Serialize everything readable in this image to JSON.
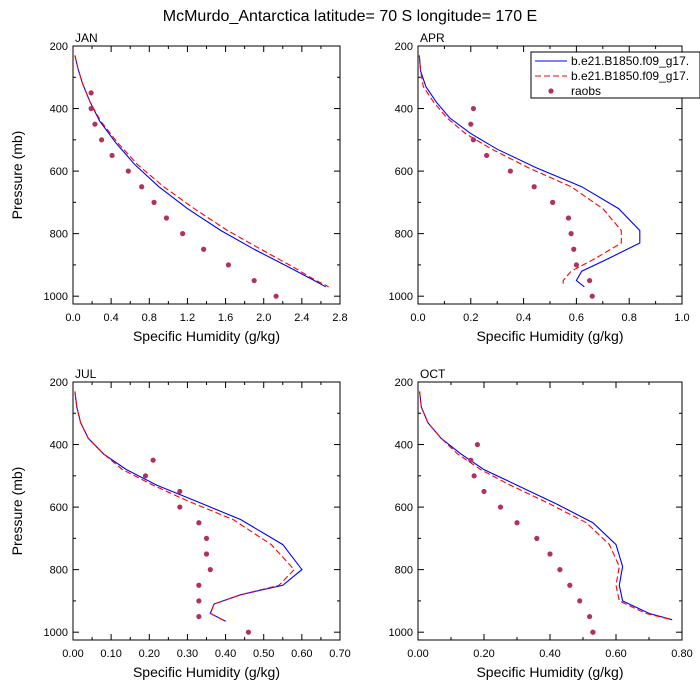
{
  "title": "McMurdo_Antarctica  latitude= 70 S longitude= 170 E",
  "colors": {
    "series1": "#0000ff",
    "series2": "#ff0000",
    "obs": "#b03060"
  },
  "legend": {
    "position": "top-right",
    "entries": [
      {
        "label": "b.e21.B1850.f09_g17.",
        "style": "solid-line"
      },
      {
        "label": "b.e21.B1850.f09_g17.",
        "style": "dashed-line"
      },
      {
        "label": "raobs",
        "style": "dot"
      }
    ]
  },
  "chart_data": [
    {
      "panel": "JAN",
      "type": "line",
      "xlabel": "Specific Humidity (g/kg)",
      "ylabel": "Pressure (mb)",
      "xlim": [
        0,
        2.8
      ],
      "xticks": [
        "0.0",
        "0.4",
        "0.8",
        "1.2",
        "1.6",
        "2.0",
        "2.4",
        "2.8"
      ],
      "ylim": [
        200,
        1025
      ],
      "yticks": [
        "200",
        "400",
        "600",
        "800",
        "1000"
      ],
      "series": [
        {
          "style": "solid",
          "color": "#0000ff",
          "x": [
            0.02,
            0.05,
            0.1,
            0.18,
            0.28,
            0.45,
            0.65,
            0.9,
            1.2,
            1.55,
            1.9,
            2.25,
            2.5,
            2.65
          ],
          "y": [
            230,
            270,
            320,
            380,
            440,
            510,
            580,
            650,
            720,
            790,
            850,
            905,
            945,
            970
          ]
        },
        {
          "style": "dashed",
          "color": "#ff0000",
          "x": [
            0.02,
            0.05,
            0.1,
            0.18,
            0.29,
            0.47,
            0.68,
            0.95,
            1.27,
            1.62,
            1.97,
            2.3,
            2.52,
            2.68
          ],
          "y": [
            230,
            270,
            320,
            380,
            440,
            510,
            580,
            650,
            720,
            790,
            850,
            905,
            945,
            970
          ]
        },
        {
          "style": "dots",
          "color": "#b03060",
          "x": [
            0.19,
            0.19,
            0.23,
            0.3,
            0.41,
            0.58,
            0.72,
            0.85,
            0.98,
            1.15,
            1.37,
            1.63,
            1.9,
            2.13
          ],
          "y": [
            350,
            400,
            450,
            500,
            550,
            600,
            650,
            700,
            750,
            800,
            850,
            900,
            950,
            1000
          ]
        }
      ]
    },
    {
      "panel": "APR",
      "type": "line",
      "xlabel": "Specific Humidity (g/kg)",
      "ylabel": "",
      "xlim": [
        0,
        1.0
      ],
      "xticks": [
        "0.0",
        "0.2",
        "0.4",
        "0.6",
        "0.8",
        "1.0"
      ],
      "ylim": [
        200,
        1025
      ],
      "yticks": [
        "200",
        "400",
        "600",
        "800",
        "1000"
      ],
      "series": [
        {
          "style": "solid",
          "color": "#0000ff",
          "x": [
            0.005,
            0.01,
            0.03,
            0.07,
            0.12,
            0.2,
            0.3,
            0.45,
            0.62,
            0.76,
            0.84,
            0.84,
            0.72,
            0.62,
            0.6,
            0.63
          ],
          "y": [
            230,
            280,
            330,
            380,
            430,
            480,
            530,
            590,
            650,
            720,
            790,
            830,
            880,
            920,
            950,
            970
          ]
        },
        {
          "style": "dashed",
          "color": "#ff0000",
          "x": [
            0.005,
            0.01,
            0.02,
            0.06,
            0.11,
            0.18,
            0.28,
            0.42,
            0.58,
            0.7,
            0.77,
            0.77,
            0.67,
            0.58,
            0.55,
            0.55
          ],
          "y": [
            230,
            280,
            330,
            380,
            430,
            480,
            530,
            590,
            650,
            720,
            790,
            830,
            880,
            920,
            950,
            970
          ]
        },
        {
          "style": "dots",
          "color": "#b03060",
          "x": [
            0.21,
            0.2,
            0.21,
            0.26,
            0.35,
            0.44,
            0.51,
            0.57,
            0.58,
            0.59,
            0.6,
            0.65,
            0.66
          ],
          "y": [
            400,
            450,
            500,
            550,
            600,
            650,
            700,
            750,
            800,
            850,
            900,
            950,
            1000
          ]
        }
      ]
    },
    {
      "panel": "JUL",
      "type": "line",
      "xlabel": "Specific Humidity (g/kg)",
      "ylabel": "Pressure (mb)",
      "xlim": [
        0,
        0.7
      ],
      "xticks": [
        "0.00",
        "0.10",
        "0.20",
        "0.30",
        "0.40",
        "0.50",
        "0.60",
        "0.70"
      ],
      "ylim": [
        200,
        1025
      ],
      "yticks": [
        "200",
        "400",
        "600",
        "800",
        "1000"
      ],
      "series": [
        {
          "style": "solid",
          "color": "#0000ff",
          "x": [
            0.005,
            0.01,
            0.02,
            0.04,
            0.08,
            0.14,
            0.22,
            0.32,
            0.44,
            0.55,
            0.6,
            0.55,
            0.44,
            0.37,
            0.36,
            0.4
          ],
          "y": [
            230,
            280,
            330,
            380,
            430,
            480,
            530,
            580,
            640,
            720,
            800,
            850,
            880,
            910,
            940,
            965
          ]
        },
        {
          "style": "dashed",
          "color": "#ff0000",
          "x": [
            0.005,
            0.01,
            0.02,
            0.04,
            0.08,
            0.13,
            0.21,
            0.3,
            0.42,
            0.52,
            0.58,
            0.54,
            0.44,
            0.37,
            0.36,
            0.4
          ],
          "y": [
            230,
            280,
            330,
            380,
            430,
            480,
            530,
            580,
            640,
            720,
            800,
            850,
            880,
            910,
            940,
            965
          ]
        },
        {
          "style": "dots",
          "color": "#b03060",
          "x": [
            0.21,
            0.19,
            0.28,
            0.28,
            0.33,
            0.35,
            0.35,
            0.36,
            0.33,
            0.33,
            0.33,
            0.46
          ],
          "y": [
            450,
            500,
            550,
            600,
            650,
            700,
            750,
            800,
            850,
            900,
            950,
            1000
          ]
        }
      ]
    },
    {
      "panel": "OCT",
      "type": "line",
      "xlabel": "Specific Humidity (g/kg)",
      "ylabel": "",
      "xlim": [
        0,
        0.8
      ],
      "xticks": [
        "0.00",
        "0.20",
        "0.40",
        "0.60",
        "0.80"
      ],
      "ylim": [
        200,
        1025
      ],
      "yticks": [
        "200",
        "400",
        "600",
        "800",
        "1000"
      ],
      "series": [
        {
          "style": "solid",
          "color": "#0000ff",
          "x": [
            0.005,
            0.01,
            0.03,
            0.07,
            0.13,
            0.2,
            0.3,
            0.42,
            0.53,
            0.6,
            0.62,
            0.61,
            0.62,
            0.7,
            0.77
          ],
          "y": [
            230,
            280,
            330,
            380,
            430,
            480,
            530,
            590,
            650,
            720,
            790,
            850,
            900,
            940,
            960
          ]
        },
        {
          "style": "dashed",
          "color": "#ff0000",
          "x": [
            0.005,
            0.01,
            0.03,
            0.07,
            0.12,
            0.19,
            0.28,
            0.4,
            0.51,
            0.58,
            0.61,
            0.6,
            0.61,
            0.69,
            0.77
          ],
          "y": [
            230,
            280,
            330,
            380,
            430,
            480,
            530,
            590,
            650,
            720,
            790,
            850,
            900,
            940,
            960
          ]
        },
        {
          "style": "dots",
          "color": "#b03060",
          "x": [
            0.18,
            0.16,
            0.17,
            0.2,
            0.25,
            0.3,
            0.36,
            0.4,
            0.43,
            0.46,
            0.49,
            0.52,
            0.53,
            0.53
          ],
          "y": [
            400,
            450,
            500,
            550,
            600,
            650,
            700,
            750,
            800,
            850,
            900,
            950,
            1000,
            1000
          ]
        }
      ]
    }
  ]
}
